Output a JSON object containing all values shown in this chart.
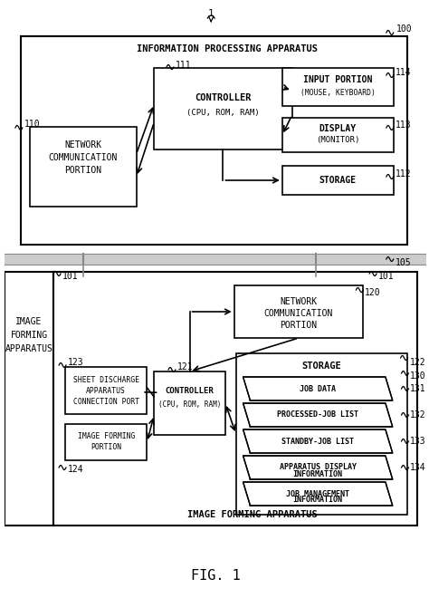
{
  "fig_width": 4.74,
  "fig_height": 6.6,
  "bg_color": "#ffffff",
  "line_color": "#000000",
  "gray_color": "#999999",
  "title": "FIG. 1",
  "ref_num_1": "1",
  "ref_num_100": "100",
  "ref_num_105": "105",
  "ref_num_101a": "101",
  "ref_num_101b": "101",
  "ref_num_110": "110",
  "ref_num_111": "111",
  "ref_num_112": "112",
  "ref_num_113": "113",
  "ref_num_114": "114",
  "ref_num_120": "120",
  "ref_num_121": "121",
  "ref_num_122": "122",
  "ref_num_123": "123",
  "ref_num_124": "124",
  "ref_num_130": "130",
  "ref_num_131": "131",
  "ref_num_132": "132",
  "ref_num_133": "133",
  "ref_num_134": "134"
}
